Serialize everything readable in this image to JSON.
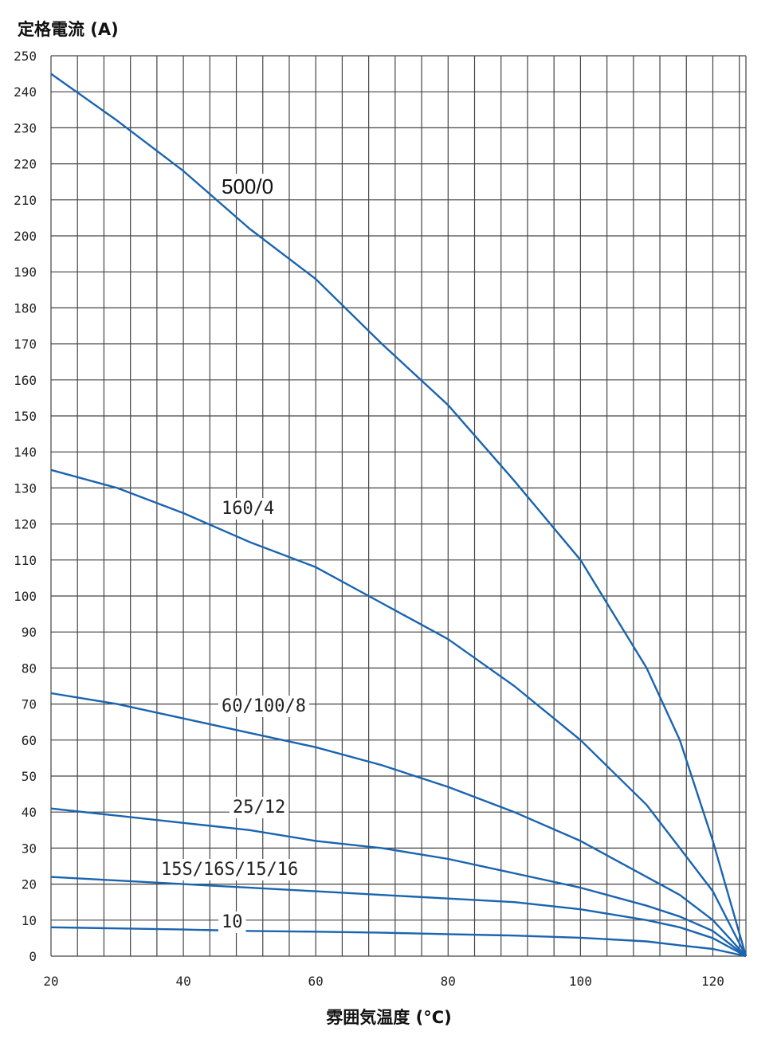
{
  "chart_data": {
    "type": "line",
    "xlabel": "雰囲気温度 (°C)",
    "ylabel": "定格電流 (A)",
    "xlim": [
      20,
      125
    ],
    "ylim": [
      0,
      250
    ],
    "xticks": [
      "20",
      "40",
      "60",
      "80",
      "100",
      "120"
    ],
    "yticks": [
      "0",
      "10",
      "20",
      "30",
      "40",
      "50",
      "60",
      "70",
      "80",
      "90",
      "100",
      "110",
      "120",
      "130",
      "140",
      "150",
      "160",
      "170",
      "180",
      "190",
      "200",
      "210",
      "220",
      "230",
      "240",
      "250"
    ],
    "grid": true,
    "line_color": "#1a64b0",
    "series": [
      {
        "name": "500/0",
        "x": [
          20,
          30,
          40,
          50,
          60,
          70,
          80,
          90,
          100,
          110,
          115,
          120,
          125
        ],
        "y": [
          245,
          232,
          218,
          202,
          188,
          170,
          153,
          132,
          110,
          80,
          60,
          32,
          0
        ]
      },
      {
        "name": "160/4",
        "x": [
          20,
          30,
          40,
          50,
          60,
          70,
          80,
          90,
          100,
          110,
          115,
          120,
          125
        ],
        "y": [
          135,
          130,
          123,
          115,
          108,
          98,
          88,
          75,
          60,
          42,
          30,
          18,
          0
        ]
      },
      {
        "name": "60/100/8",
        "x": [
          20,
          30,
          40,
          50,
          60,
          70,
          80,
          90,
          100,
          110,
          115,
          120,
          125
        ],
        "y": [
          73,
          70,
          66,
          62,
          58,
          53,
          47,
          40,
          32,
          22,
          17,
          10,
          0
        ]
      },
      {
        "name": "25/12",
        "x": [
          20,
          30,
          40,
          50,
          60,
          70,
          80,
          90,
          100,
          110,
          115,
          120,
          125
        ],
        "y": [
          41,
          39,
          37,
          35,
          32,
          30,
          27,
          23,
          19,
          14,
          11,
          7,
          0
        ]
      },
      {
        "name": "15S/16S/15/16",
        "x": [
          20,
          30,
          40,
          50,
          60,
          70,
          80,
          90,
          100,
          110,
          115,
          120,
          125
        ],
        "y": [
          22,
          21,
          20,
          19,
          18,
          17,
          16,
          15,
          13,
          10,
          8,
          5,
          0
        ]
      },
      {
        "name": "10",
        "x": [
          20,
          30,
          40,
          50,
          60,
          70,
          80,
          90,
          100,
          110,
          115,
          120,
          125
        ],
        "y": [
          8,
          7.7,
          7.4,
          7,
          6.8,
          6.5,
          6.1,
          5.7,
          5.1,
          4.1,
          3,
          2,
          0
        ]
      }
    ]
  }
}
